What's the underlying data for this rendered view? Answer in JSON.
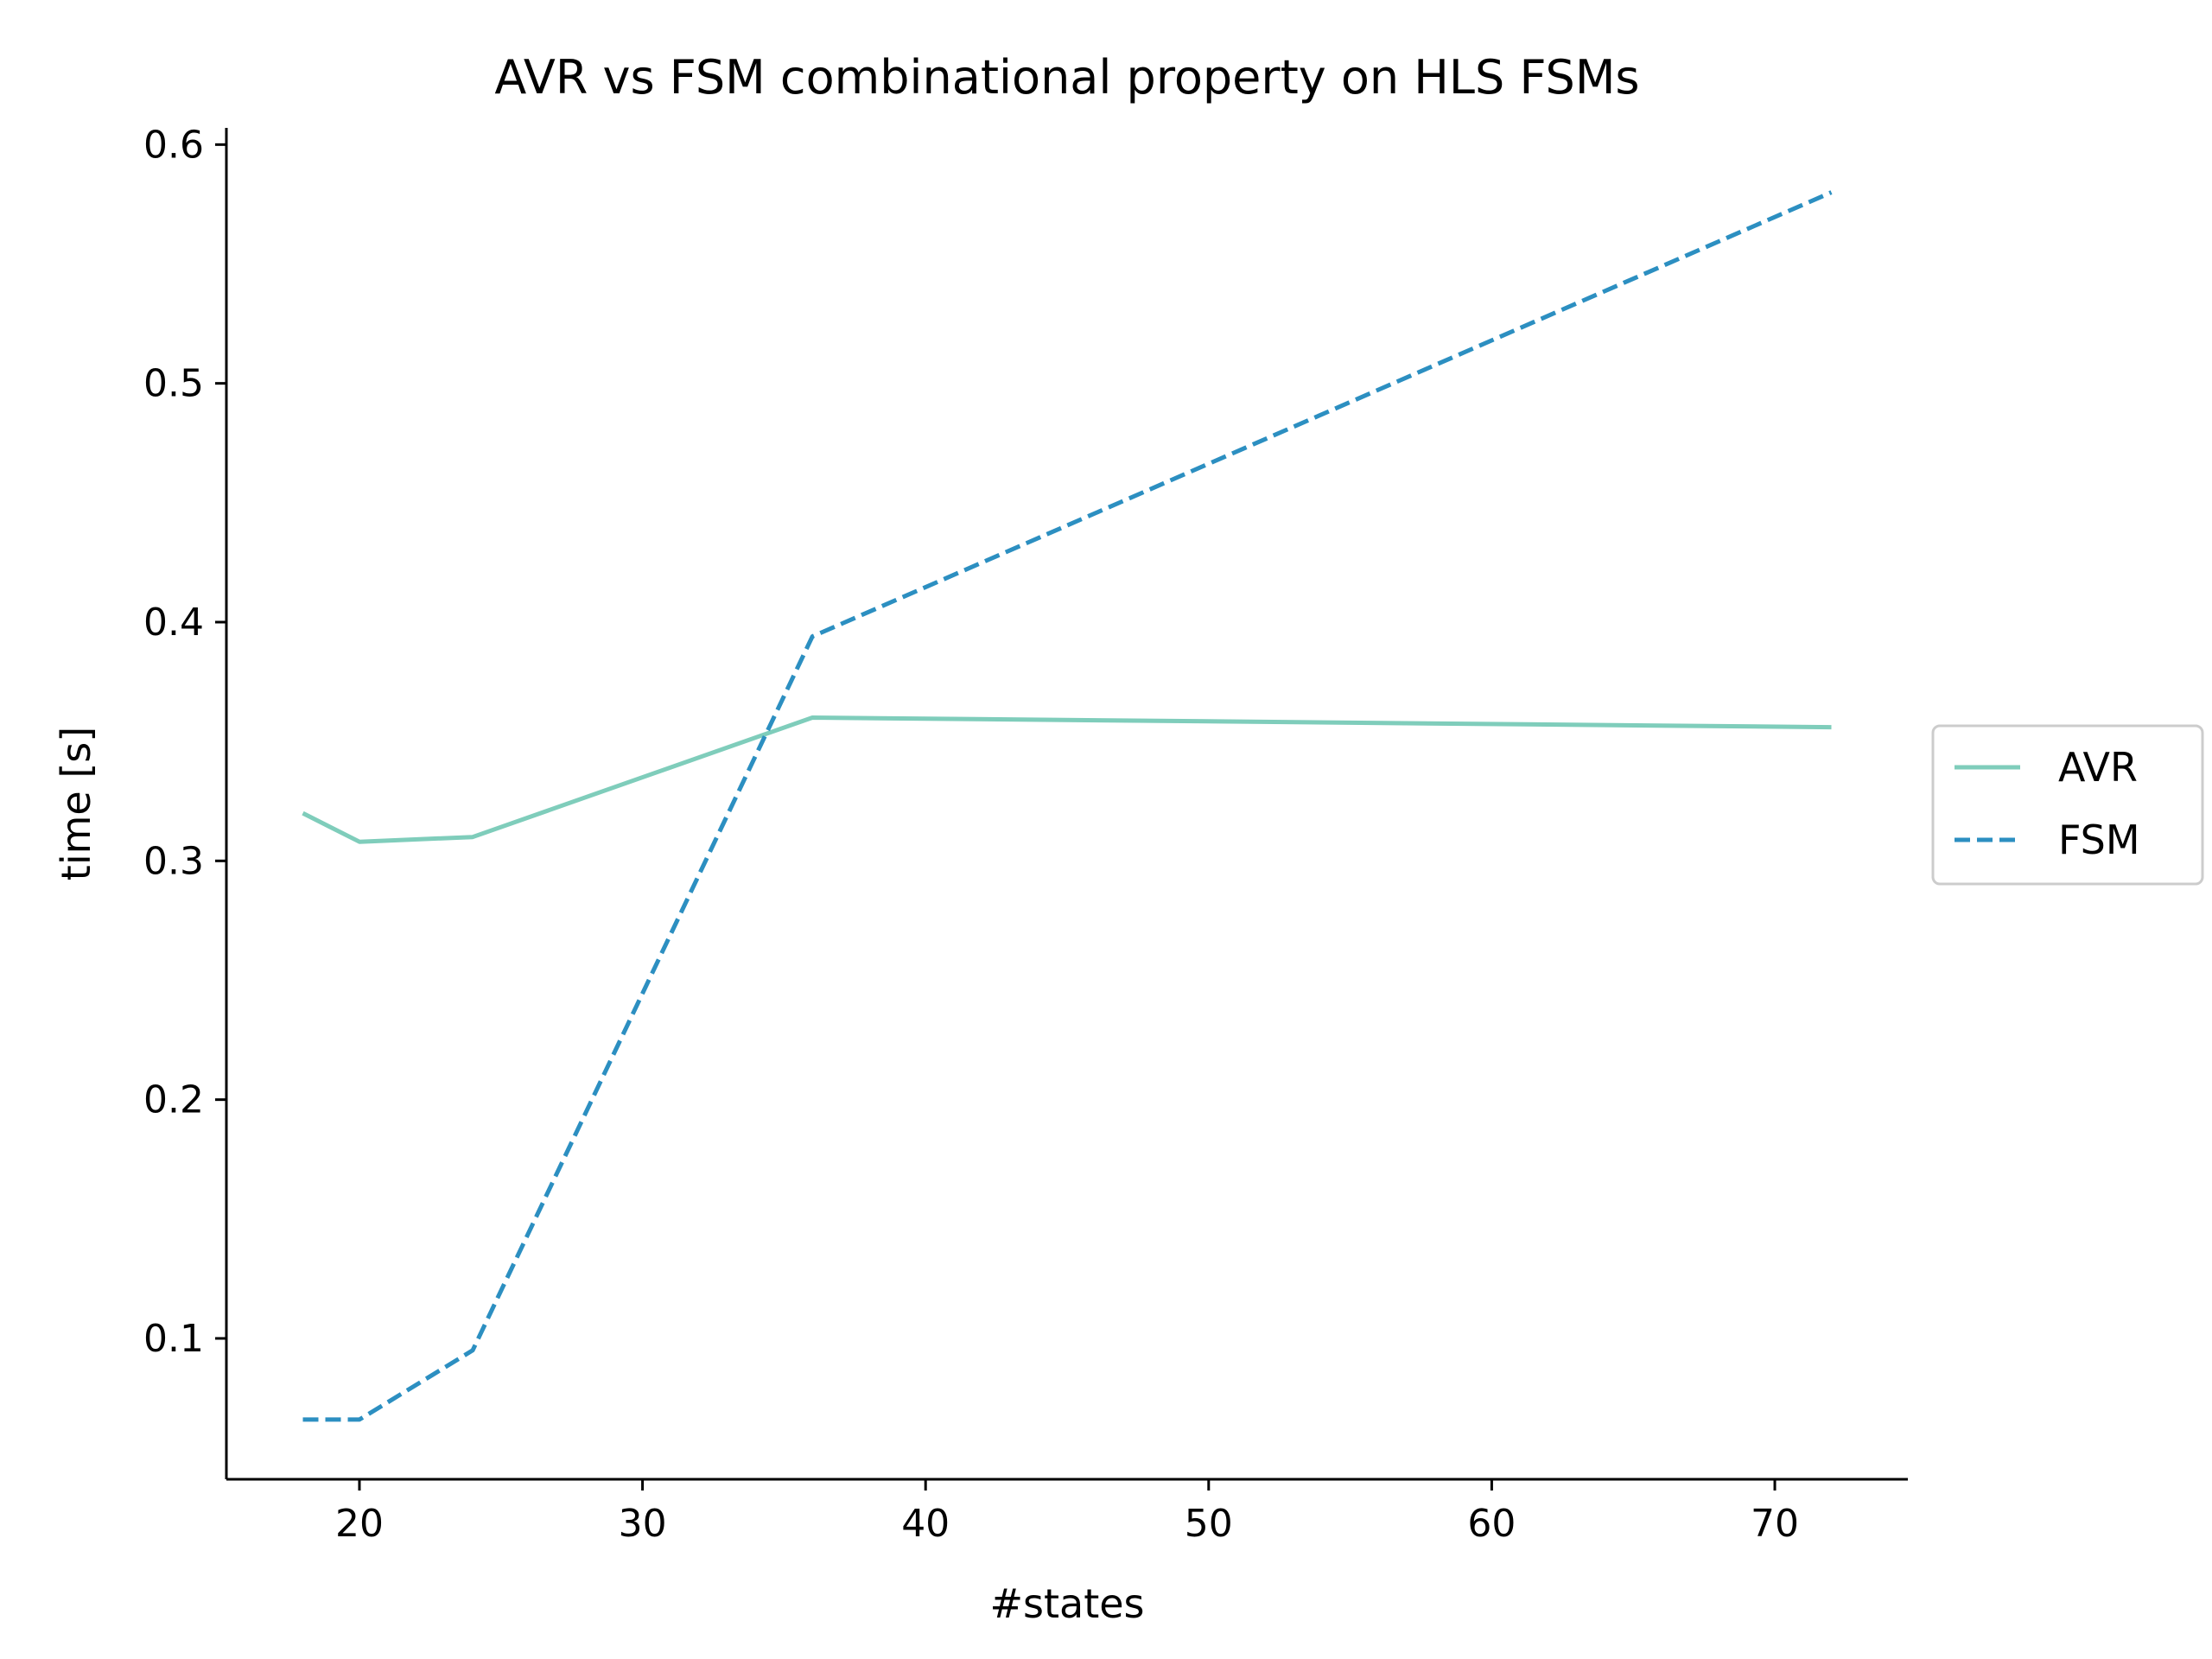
{
  "chart_data": {
    "type": "line",
    "title": "AVR vs FSM combinational property on HLS FSMs",
    "xlabel": "#states",
    "ylabel": "time [s]",
    "x": [
      18,
      20,
      24,
      36,
      72
    ],
    "series": [
      {
        "name": "AVR",
        "values": [
          0.32,
          0.308,
          0.31,
          0.36,
          0.356
        ],
        "color": "#7fcdbb",
        "dash": "solid"
      },
      {
        "name": "FSM",
        "values": [
          0.066,
          0.066,
          0.095,
          0.394,
          0.58
        ],
        "color": "#2c8fc1",
        "dash": "dashed"
      }
    ],
    "xlim": [
      15.3,
      74.7
    ],
    "ylim": [
      0.041,
      0.607
    ],
    "xticks": [
      "20",
      "30",
      "40",
      "50",
      "60",
      "70"
    ],
    "yticks": [
      "0.1",
      "0.2",
      "0.3",
      "0.4",
      "0.5",
      "0.6"
    ],
    "grid": false,
    "legend_position": "right-center"
  }
}
